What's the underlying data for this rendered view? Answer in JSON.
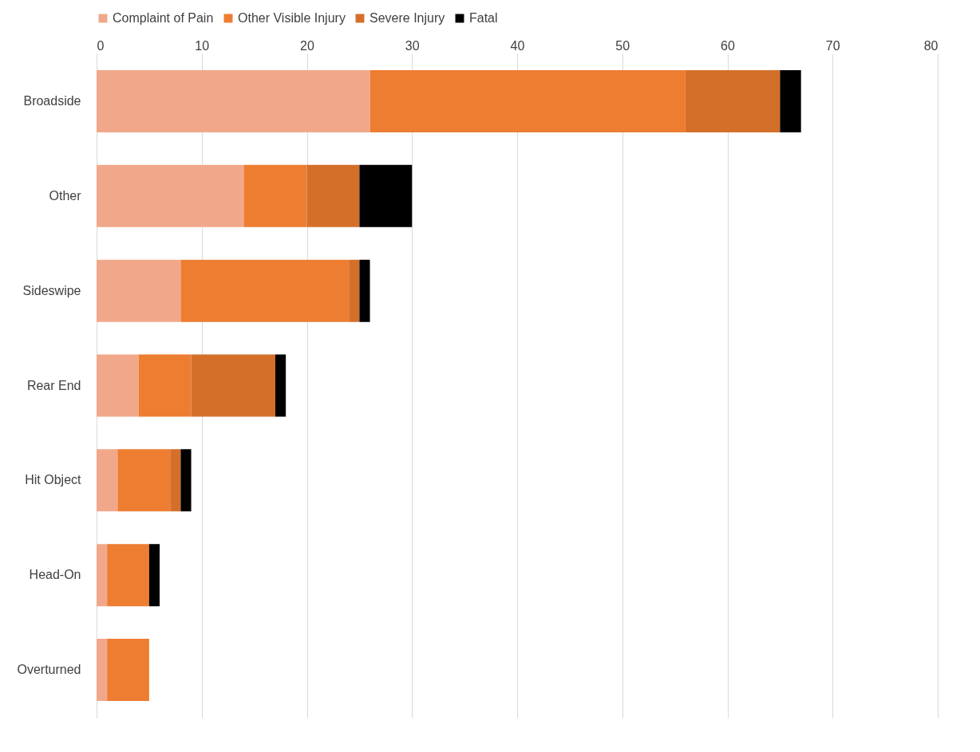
{
  "chart_data": {
    "type": "bar",
    "orientation": "horizontal",
    "stacked": true,
    "categories": [
      "Broadside",
      "Other",
      "Sideswipe",
      "Rear End",
      "Hit Object",
      "Head-On",
      "Overturned"
    ],
    "series": [
      {
        "name": "Complaint of Pain",
        "color": "#f1a88a",
        "values": [
          26,
          14,
          8,
          4,
          2,
          1,
          1
        ]
      },
      {
        "name": "Other Visible Injury",
        "color": "#ed7d31",
        "values": [
          30,
          6,
          16,
          5,
          5,
          4,
          4
        ]
      },
      {
        "name": "Severe Injury",
        "color": "#d46f2a",
        "values": [
          9,
          5,
          1,
          8,
          1,
          0,
          0
        ]
      },
      {
        "name": "Fatal",
        "color": "#000000",
        "values": [
          2,
          5,
          1,
          1,
          1,
          1,
          0
        ]
      }
    ],
    "xlim": [
      0,
      80
    ],
    "xticks": [
      0,
      10,
      20,
      30,
      40,
      50,
      60,
      70,
      80
    ],
    "grid": "x",
    "legend": "top"
  }
}
